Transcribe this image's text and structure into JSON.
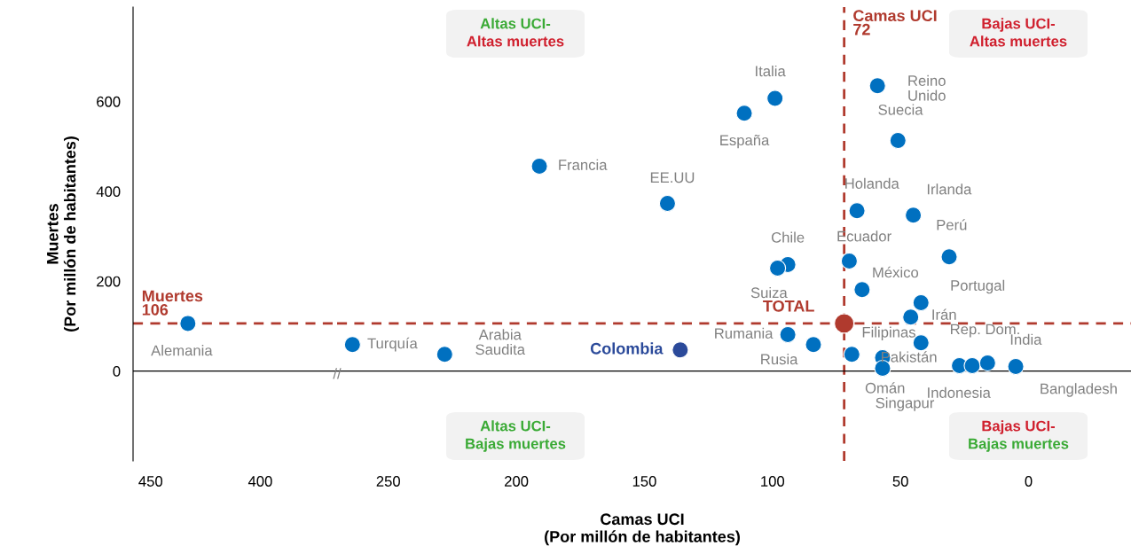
{
  "chart_data": [
    {
      "type": "scatter",
      "ylabel": "Muertes\n(Por millón de habitantes)",
      "xlim": [
        458,
        365
      ],
      "xticks": [
        450,
        400
      ],
      "ylim": [
        -200,
        810
      ],
      "yticks": [
        0,
        200,
        400,
        600
      ],
      "grid": false,
      "marker": "circle",
      "series": [
        {
          "x": [
            433
          ],
          "values": [
            106
          ],
          "color": "#0070c0"
        }
      ],
      "ref_lines": [
        {
          "axis": "y",
          "value": 106,
          "label": "Muertes\n106",
          "color": "#b03a2e",
          "line_style": "dashed"
        },
        {
          "axis": "y",
          "value": 0,
          "label": null,
          "color": "#000000",
          "line_style": "solid"
        }
      ],
      "annotations": [
        {
          "text": "Alemania",
          "x": 433,
          "y": 106
        },
        "//"
      ]
    },
    {
      "type": "scatter",
      "xlabel": "Camas UCI\n(Por millón de habitantes)",
      "xlim": [
        270,
        -40
      ],
      "xticks": [
        250,
        200,
        150,
        100,
        50,
        0
      ],
      "ylim": [
        -200,
        810
      ],
      "yticks": [
        0,
        200,
        400,
        600
      ],
      "tick_labels": "x",
      "grid": false,
      "marker": "circle",
      "series": [
        {
          "x": [
            264,
            228,
            191,
            141,
            111,
            99,
            94,
            98,
            94,
            84,
            70,
            65,
            69,
            67,
            59,
            51,
            45,
            31,
            42,
            46,
            42,
            57,
            57,
            27,
            22,
            16,
            5
          ],
          "values": [
            59,
            37,
            456,
            373,
            574,
            607,
            237,
            229,
            81,
            59,
            245,
            181,
            37,
            357,
            635,
            513,
            347,
            254,
            152,
            120,
            63,
            30,
            6,
            12,
            12,
            18,
            10
          ],
          "color": "#0070c0"
        },
        {
          "name": "Colombia",
          "x": [
            136
          ],
          "values": [
            47
          ],
          "color": "#2b4a9a"
        },
        {
          "name": "TOTAL",
          "x": [
            72
          ],
          "values": [
            106
          ],
          "color": "#b03a2e"
        }
      ],
      "ref_lines": [
        {
          "axis": "y",
          "value": 106,
          "label": null,
          "color": "#b03a2e",
          "line_style": "dashed"
        },
        {
          "axis": "x",
          "value": 72,
          "label": "Camas UCI\n72",
          "color": "#b03a2e",
          "line_style": "dashed"
        },
        {
          "axis": "y",
          "value": 0,
          "label": null,
          "color": "#000000",
          "line_style": "solid"
        }
      ],
      "annotations": [
        {
          "text": "Turquía",
          "x": 264,
          "y": 59
        },
        {
          "text": "Arabia\nSaudita",
          "x": 228,
          "y": 37
        },
        {
          "text": "Francia",
          "x": 191,
          "y": 456
        },
        {
          "text": "EE.UU",
          "x": 141,
          "y": 373
        },
        {
          "text": "España",
          "x": 111,
          "y": 574
        },
        {
          "text": "Italia",
          "x": 99,
          "y": 607
        },
        {
          "text": "Chile",
          "x": 94,
          "y": 237
        },
        {
          "text": "Suiza",
          "x": 98,
          "y": 229
        },
        {
          "text": "Rumania",
          "x": 94,
          "y": 81
        },
        {
          "text": "Rusia",
          "x": 84,
          "y": 59
        },
        {
          "text": "Ecuador",
          "x": 70,
          "y": 245
        },
        {
          "text": "México",
          "x": 65,
          "y": 181
        },
        {
          "text": "Filipinas",
          "x": 69,
          "y": 37
        },
        {
          "text": "Holanda",
          "x": 67,
          "y": 357
        },
        {
          "text": "Reino\nUnido",
          "x": 59,
          "y": 635
        },
        {
          "text": "Suecia",
          "x": 51,
          "y": 513
        },
        {
          "text": "Irlanda",
          "x": 45,
          "y": 347
        },
        {
          "text": "Perú",
          "x": 31,
          "y": 254
        },
        {
          "text": "Portugal",
          "x": 42,
          "y": 152
        },
        {
          "text": "Irán",
          "x": 46,
          "y": 120
        },
        {
          "text": "Rep. Dom.",
          "x": 42,
          "y": 63
        },
        {
          "text": "Omán",
          "x": 57,
          "y": 6
        },
        {
          "text": "Pakistán",
          "x": 27,
          "y": 12
        },
        {
          "text": "Indonesia",
          "x": 22,
          "y": 12
        },
        {
          "text": "India",
          "x": 16,
          "y": 18
        },
        {
          "text": "Bangladesh",
          "x": 5,
          "y": 10
        },
        "Altas UCI-\nAltas muertes",
        "Bajas UCI-\nAltas muertes",
        "Altas UCI-\nBajas muertes",
        "Bajas UCI-\nBajas muertes",
        "Singapur"
      ]
    }
  ]
}
